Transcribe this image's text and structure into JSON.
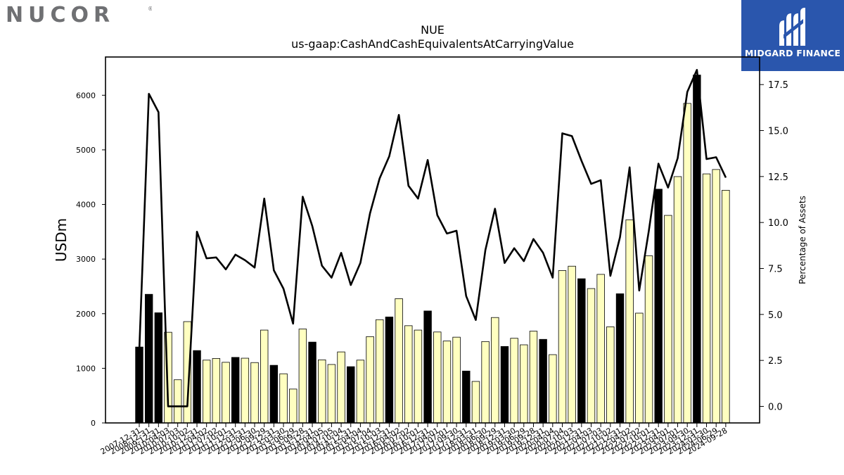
{
  "logos": {
    "left_brand": "NUCOR",
    "right_brand": "MIDGARD FINANCE",
    "right_bg_color": "#2a56ad"
  },
  "chart_data": {
    "type": "bar",
    "title": "NUE",
    "subtitle": "us-gaap:CashAndCashEquivalentsAtCarryingValue",
    "ylabel": "USDm",
    "y2label": "Percentage of Assets",
    "ylim": [
      0,
      6700
    ],
    "y2lim": [
      -0.9,
      19.0
    ],
    "yticks": [
      0,
      1000,
      2000,
      3000,
      4000,
      5000,
      6000
    ],
    "y2ticks": [
      "0.0",
      "2.5",
      "5.0",
      "7.5",
      "10.0",
      "12.5",
      "15.0",
      "17.5"
    ],
    "colors": {
      "annual_bar": "#000000",
      "quarter_bar": "#ffffc0",
      "line": "#000000"
    },
    "x": [
      "2007-12-31",
      "2008-12-31",
      "2009-12-31",
      "2010-04-03",
      "2010-07-03",
      "2010-10-02",
      "2010-12-31",
      "2011-04-02",
      "2011-07-02",
      "2011-10-01",
      "2011-12-31",
      "2012-03-31",
      "2012-06-30",
      "2012-09-29",
      "2012-12-31",
      "2013-03-30",
      "2013-06-29",
      "2013-09-28",
      "2013-12-31",
      "2014-04-05",
      "2014-07-05",
      "2014-10-04",
      "2014-12-31",
      "2015-04-04",
      "2015-07-04",
      "2015-10-03",
      "2015-12-31",
      "2016-04-02",
      "2016-07-02",
      "2016-10-01",
      "2016-12-31",
      "2017-04-01",
      "2017-07-01",
      "2017-09-30",
      "2017-12-31",
      "2018-03-31",
      "2018-06-30",
      "2018-09-29",
      "2018-12-31",
      "2019-03-30",
      "2019-06-29",
      "2019-09-28",
      "2019-12-31",
      "2020-04-04",
      "2020-07-04",
      "2020-10-03",
      "2020-12-31",
      "2021-04-03",
      "2021-07-03",
      "2021-10-02",
      "2021-12-31",
      "2022-04-02",
      "2022-07-02",
      "2022-10-01",
      "2022-12-31",
      "2023-04-01",
      "2023-07-01",
      "2023-09-30",
      "2023-12-31",
      "2024-03-30",
      "2024-06-29",
      "2024-09-28"
    ],
    "bar_type": [
      "annual",
      "annual",
      "annual",
      "quarter",
      "quarter",
      "quarter",
      "annual",
      "quarter",
      "quarter",
      "quarter",
      "annual",
      "quarter",
      "quarter",
      "quarter",
      "annual",
      "quarter",
      "quarter",
      "quarter",
      "annual",
      "quarter",
      "quarter",
      "quarter",
      "annual",
      "quarter",
      "quarter",
      "quarter",
      "annual",
      "quarter",
      "quarter",
      "quarter",
      "annual",
      "quarter",
      "quarter",
      "quarter",
      "annual",
      "quarter",
      "quarter",
      "quarter",
      "annual",
      "quarter",
      "quarter",
      "quarter",
      "annual",
      "quarter",
      "quarter",
      "quarter",
      "annual",
      "quarter",
      "quarter",
      "quarter",
      "annual",
      "quarter",
      "quarter",
      "quarter",
      "annual",
      "quarter",
      "quarter",
      "quarter",
      "annual",
      "quarter",
      "quarter",
      "quarter"
    ],
    "values": [
      1390,
      2355,
      2017,
      1660,
      790,
      1855,
      1325,
      1150,
      1180,
      1110,
      1200,
      1185,
      1105,
      1700,
      1055,
      900,
      620,
      1720,
      1480,
      1155,
      1070,
      1300,
      1030,
      1150,
      1580,
      1890,
      1940,
      2275,
      1780,
      1700,
      2050,
      1665,
      1500,
      1570,
      950,
      760,
      1490,
      1930,
      1400,
      1550,
      1430,
      1680,
      1530,
      1250,
      2790,
      2870,
      2640,
      2460,
      2720,
      1760,
      2365,
      3720,
      2010,
      3060,
      4280,
      3800,
      4510,
      5850,
      6370,
      4560,
      4640,
      4260
    ],
    "pct_assets": [
      3.0,
      17.0,
      16.0,
      0.0,
      0.0,
      0.0,
      9.5,
      8.05,
      8.1,
      7.45,
      8.25,
      7.95,
      7.55,
      11.3,
      7.4,
      6.4,
      4.5,
      11.4,
      9.8,
      7.65,
      7.0,
      8.35,
      6.6,
      7.8,
      10.5,
      12.4,
      13.6,
      15.85,
      12.0,
      11.3,
      13.4,
      10.4,
      9.4,
      9.55,
      6.0,
      4.7,
      8.5,
      10.75,
      7.8,
      8.6,
      7.9,
      9.1,
      8.35,
      7.0,
      14.85,
      14.7,
      13.35,
      12.1,
      12.3,
      7.1,
      9.2,
      13.0,
      6.3,
      9.55,
      13.2,
      11.9,
      13.5,
      17.1,
      18.3,
      13.45,
      13.55,
      12.45
    ]
  }
}
